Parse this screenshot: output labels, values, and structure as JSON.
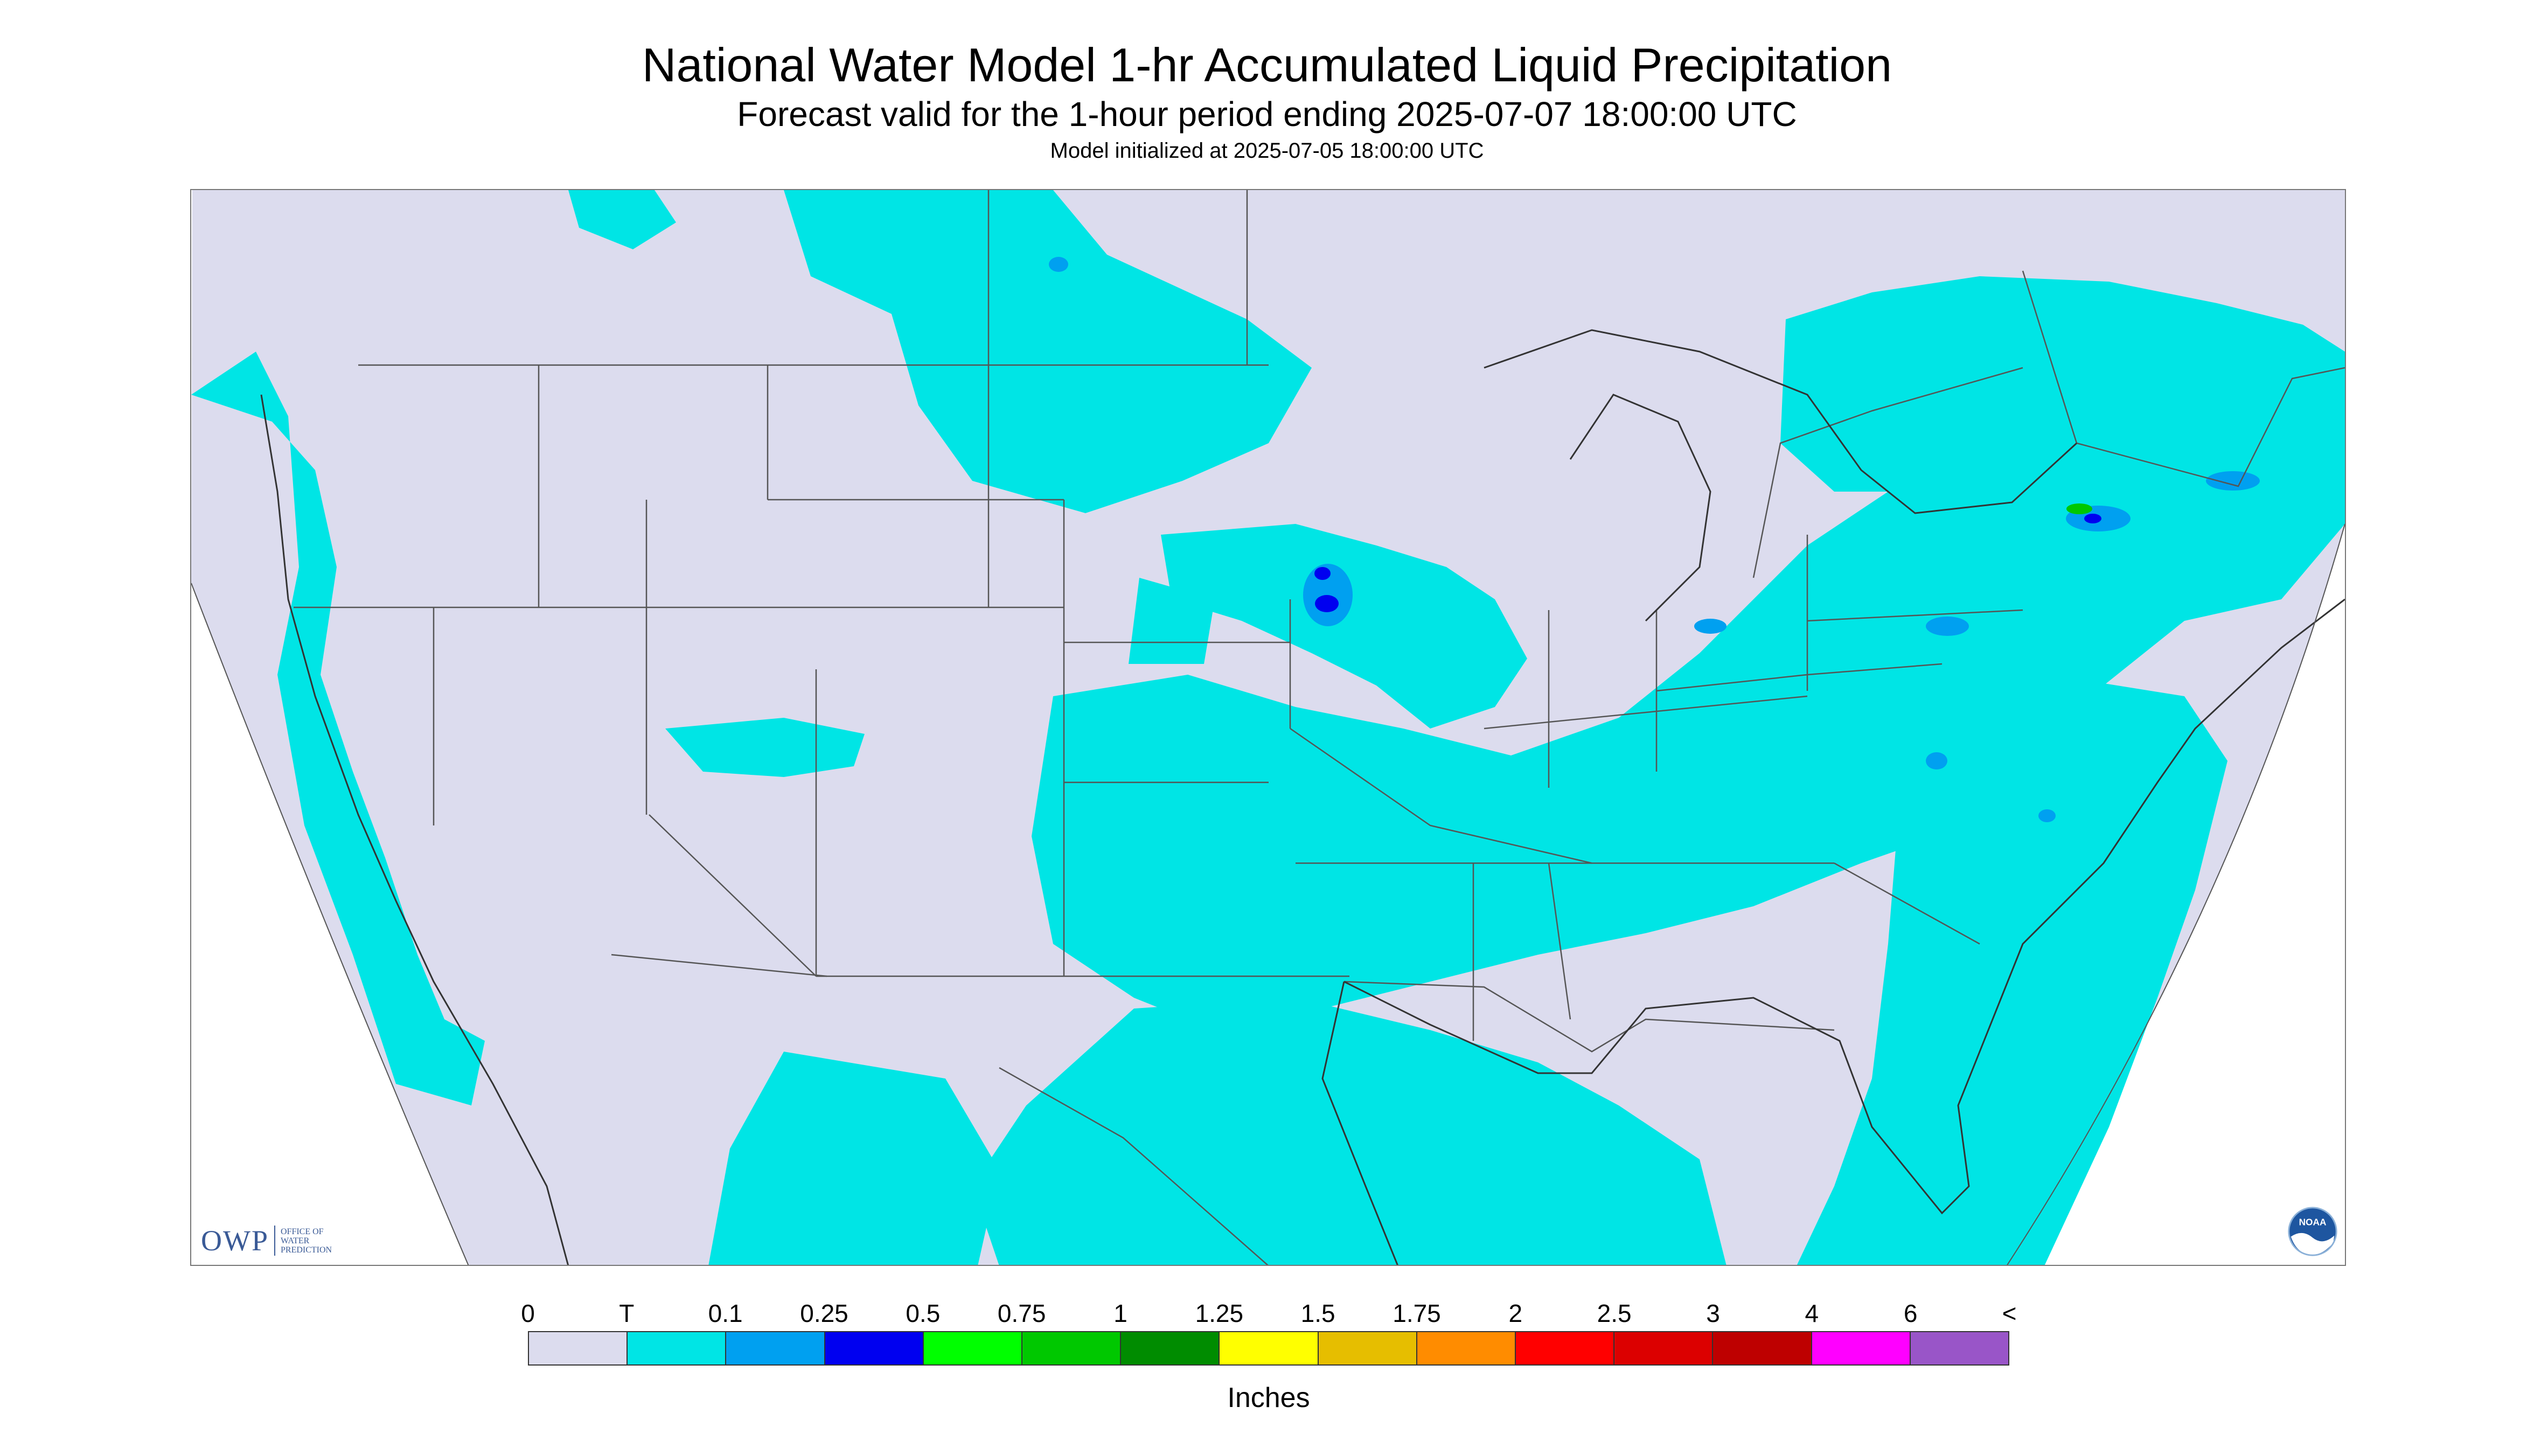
{
  "header": {
    "title": "National Water Model 1-hr Accumulated Liquid Precipitation",
    "subtitle": "Forecast valid for the 1-hour period ending 2025-07-07 18:00:00 UTC",
    "init_line": "Model initialized at 2025-07-05 18:00:00 UTC"
  },
  "logos": {
    "owp_letters": "OWP",
    "owp_name": "OFFICE OF WATER PREDICTION",
    "noaa_text": "NOAA"
  },
  "legend": {
    "units": "Inches",
    "labels": [
      "0",
      "T",
      "0.1",
      "0.25",
      "0.5",
      "0.75",
      "1",
      "1.25",
      "1.5",
      "1.75",
      "2",
      "2.5",
      "3",
      "4",
      "6",
      "<"
    ],
    "colors": [
      "#dcdcee",
      "#00e5e5",
      "#00a0f0",
      "#0000f0",
      "#00ff00",
      "#00c800",
      "#008c00",
      "#ffff00",
      "#e6be00",
      "#ff8c00",
      "#ff0000",
      "#dc0000",
      "#be0000",
      "#ff00ff",
      "#9955c8"
    ]
  },
  "map_colors": {
    "no_precip": "#dcdcee",
    "trace": "#00e5e5",
    "light": "#00a0f0",
    "moderate": "#0000f0",
    "heavy": "#00c800",
    "outside": "#ffffff",
    "borders": "#555555"
  }
}
